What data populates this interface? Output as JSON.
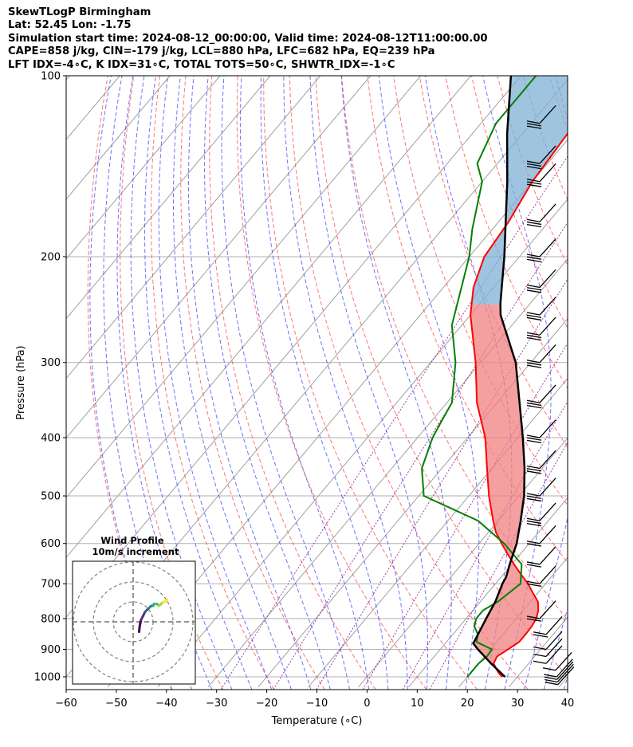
{
  "header": {
    "line1": "SkewTLogP Birmingham",
    "line2": "Lat: 52.45   Lon: -1.75",
    "line3": "Simulation start time: 2024-08-12_00:00:00, Valid time: 2024-08-12T11:00:00.00",
    "line4": "CAPE=858 j/kg, CIN=-179 j/kg, LCL=880 hPa, LFC=682 hPa, EQ=239 hPa",
    "line5": "LFT IDX=-4∘C, K IDX=31∘C, TOTAL TOTS=50∘C, SHWTR_IDX=-1∘C"
  },
  "chart_data": {
    "type": "line",
    "subtype": "skew-T log-P diagram",
    "xlabel": "Temperature (∘C)",
    "ylabel": "Pressure (hPa)",
    "xlim": [
      -60,
      40
    ],
    "ylim": [
      1040,
      100
    ],
    "y_scale": "log",
    "x_ticks": [
      -60,
      -50,
      -40,
      -30,
      -20,
      -10,
      0,
      10,
      20,
      30,
      40
    ],
    "y_ticks": [
      100,
      200,
      300,
      400,
      500,
      600,
      700,
      800,
      900,
      1000
    ],
    "grid": true,
    "colors": {
      "temperature": "#ff0000",
      "dewpoint": "#008000",
      "parcel": "#000000",
      "cape_fill": "#f08080",
      "cin_fill": "#7fb0d5",
      "dry_adiabats": "#ff4444",
      "moist_adiabats": "#4040ff",
      "mixing_ratio": "#800080",
      "isotherms": "#a0a0a0"
    },
    "series": [
      {
        "name": "temperature",
        "points": [
          [
            1000,
            27
          ],
          [
            990,
            26
          ],
          [
            975,
            24.8
          ],
          [
            950,
            23
          ],
          [
            925,
            22.5
          ],
          [
            900,
            23.5
          ],
          [
            875,
            24.5
          ],
          [
            850,
            24.5
          ],
          [
            825,
            24.4
          ],
          [
            800,
            24
          ],
          [
            775,
            23
          ],
          [
            750,
            21.5
          ],
          [
            725,
            19
          ],
          [
            700,
            16.5
          ],
          [
            675,
            13.5
          ],
          [
            650,
            10.5
          ],
          [
            625,
            7.5
          ],
          [
            600,
            4.5
          ],
          [
            575,
            1.5
          ],
          [
            550,
            -1
          ],
          [
            500,
            -6
          ],
          [
            450,
            -11
          ],
          [
            400,
            -16.5
          ],
          [
            350,
            -24
          ],
          [
            300,
            -31
          ],
          [
            250,
            -40
          ],
          [
            225,
            -44
          ],
          [
            200,
            -47
          ],
          [
            175,
            -48
          ],
          [
            150,
            -50
          ],
          [
            125,
            -51
          ],
          [
            100,
            -53
          ]
        ]
      },
      {
        "name": "dewpoint",
        "points": [
          [
            1000,
            20
          ],
          [
            975,
            20
          ],
          [
            950,
            20
          ],
          [
            925,
            20.5
          ],
          [
            900,
            20.3
          ],
          [
            875,
            16
          ],
          [
            850,
            15
          ],
          [
            825,
            13
          ],
          [
            800,
            12
          ],
          [
            775,
            12
          ],
          [
            750,
            13.5
          ],
          [
            700,
            15
          ],
          [
            650,
            12
          ],
          [
            600,
            5
          ],
          [
            550,
            -4
          ],
          [
            500,
            -19
          ],
          [
            450,
            -24
          ],
          [
            400,
            -27
          ],
          [
            375,
            -28
          ],
          [
            350,
            -29
          ],
          [
            300,
            -35
          ],
          [
            260,
            -42
          ],
          [
            200,
            -50
          ],
          [
            180,
            -54
          ],
          [
            150,
            -60
          ],
          [
            140,
            -64
          ],
          [
            120,
            -67
          ],
          [
            100,
            -67
          ]
        ]
      },
      {
        "name": "parcel",
        "points": [
          [
            1000,
            27.5
          ],
          [
            950,
            22.5
          ],
          [
            900,
            17.5
          ],
          [
            880,
            15.6
          ],
          [
            850,
            15
          ],
          [
            800,
            14
          ],
          [
            750,
            13
          ],
          [
            700,
            11.4
          ],
          [
            682,
            11
          ],
          [
            650,
            9.6
          ],
          [
            600,
            7.5
          ],
          [
            550,
            4.5
          ],
          [
            500,
            1
          ],
          [
            450,
            -3.5
          ],
          [
            400,
            -9
          ],
          [
            350,
            -15.5
          ],
          [
            300,
            -23
          ],
          [
            250,
            -34
          ],
          [
            239,
            -36
          ],
          [
            200,
            -43
          ],
          [
            150,
            -55
          ],
          [
            125,
            -63
          ],
          [
            100,
            -72
          ]
        ]
      }
    ],
    "inset": {
      "title": "Wind Profile",
      "subtitle": "10m/s increment",
      "rings_ms": [
        10,
        20,
        30
      ],
      "hodograph_uv": [
        [
          3,
          -5
        ],
        [
          3.2,
          -3
        ],
        [
          3.5,
          -1
        ],
        [
          4,
          1
        ],
        [
          5,
          3
        ],
        [
          6,
          5
        ],
        [
          7,
          6
        ],
        [
          8,
          7
        ],
        [
          9,
          8
        ],
        [
          10,
          8
        ],
        [
          10.5,
          9
        ],
        [
          11,
          9
        ],
        [
          12,
          9
        ],
        [
          13,
          8
        ],
        [
          14,
          9
        ],
        [
          15,
          10
        ],
        [
          16,
          10
        ],
        [
          17,
          11
        ]
      ]
    },
    "wind_barbs": {
      "pressures_hpa": [
        1030,
        1020,
        1010,
        1000,
        975,
        950,
        925,
        900,
        850,
        800,
        700,
        650,
        600,
        550,
        500,
        450,
        400,
        350,
        300,
        270,
        250,
        225,
        200,
        175,
        150,
        140,
        120
      ]
    }
  }
}
